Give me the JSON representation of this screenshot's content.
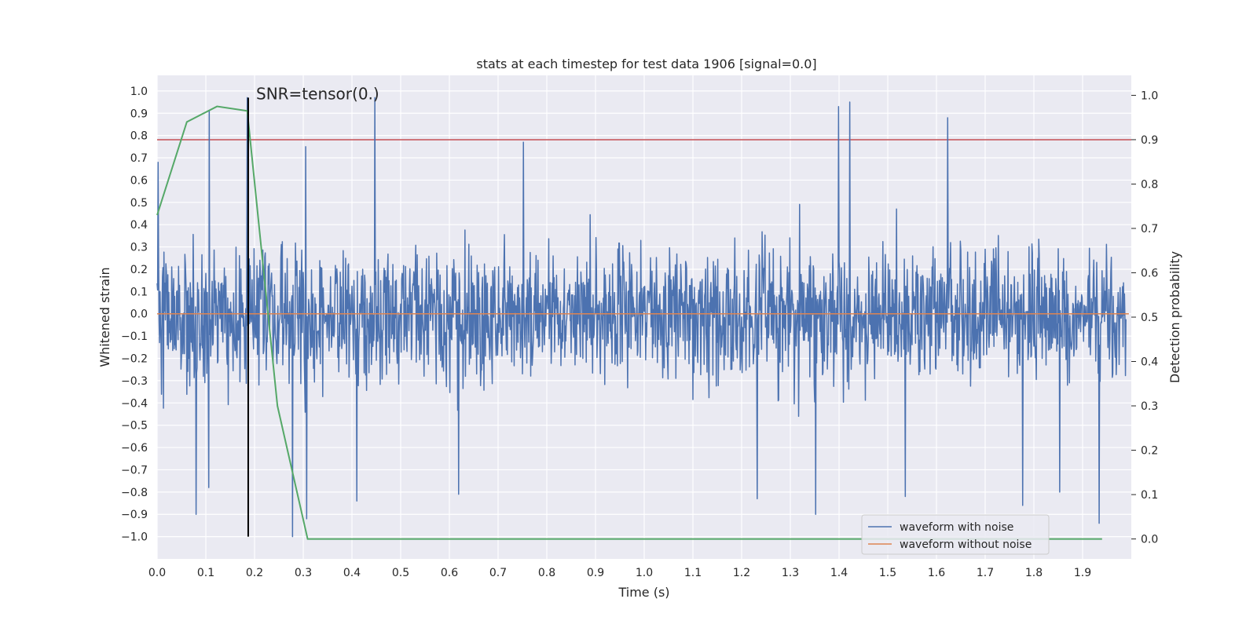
{
  "chart_data": {
    "type": "line",
    "title": "stats at each timestep for test data 1906 [signal=0.0]",
    "xlabel": "Time (s)",
    "ylabel": "Whitened strain",
    "y2label": "Detection probability",
    "xlim": [
      0.0,
      2.0
    ],
    "ylim": [
      -1.1,
      1.07
    ],
    "y2lim": [
      -0.045,
      1.045
    ],
    "x_ticks": [
      "0.0",
      "0.1",
      "0.2",
      "0.3",
      "0.4",
      "0.5",
      "0.6",
      "0.7",
      "0.8",
      "0.9",
      "1.0",
      "1.1",
      "1.2",
      "1.3",
      "1.4",
      "1.5",
      "1.6",
      "1.7",
      "1.8",
      "1.9"
    ],
    "x_tick_values": [
      0.0,
      0.1,
      0.2,
      0.3,
      0.4,
      0.5,
      0.6,
      0.7,
      0.8,
      0.9,
      1.0,
      1.1,
      1.2,
      1.3,
      1.4,
      1.5,
      1.6,
      1.7,
      1.8,
      1.9
    ],
    "y_ticks": [
      "1.0",
      "0.9",
      "0.8",
      "0.7",
      "0.6",
      "0.5",
      "0.4",
      "0.3",
      "0.2",
      "0.1",
      "0.0",
      "−0.1",
      "−0.2",
      "−0.3",
      "−0.4",
      "−0.5",
      "−0.6",
      "−0.7",
      "−0.8",
      "−0.9",
      "−1.0"
    ],
    "y_tick_values": [
      1.0,
      0.9,
      0.8,
      0.7,
      0.6,
      0.5,
      0.4,
      0.3,
      0.2,
      0.1,
      0.0,
      -0.1,
      -0.2,
      -0.3,
      -0.4,
      -0.5,
      -0.6,
      -0.7,
      -0.8,
      -0.9,
      -1.0
    ],
    "y2_ticks": [
      "1.0",
      "0.9",
      "0.8",
      "0.7",
      "0.6",
      "0.5",
      "0.4",
      "0.3",
      "0.2",
      "0.1",
      "0.0"
    ],
    "y2_tick_values": [
      1.0,
      0.9,
      0.8,
      0.7,
      0.6,
      0.5,
      0.4,
      0.3,
      0.2,
      0.1,
      0.0
    ],
    "annotation": {
      "text": "SNR=tensor(0.)",
      "x": 0.2,
      "y": 0.97
    },
    "vline": {
      "x": 0.187,
      "ymin": -1.0,
      "ymax": 0.97,
      "color": "#000000"
    },
    "threshold": {
      "value": 0.9,
      "axis": "right",
      "color": "#c44e52"
    },
    "noise_seed": 1906,
    "noise_samples": 1990,
    "noise_std": 0.26,
    "spikes": [
      {
        "x": 0.002,
        "y": 0.68
      },
      {
        "x": 0.107,
        "y": 0.91
      },
      {
        "x": 0.185,
        "y": 0.97
      },
      {
        "x": 0.447,
        "y": 0.97
      },
      {
        "x": 1.399,
        "y": 0.93
      },
      {
        "x": 1.422,
        "y": 0.95
      },
      {
        "x": 1.623,
        "y": 0.88
      },
      {
        "x": 0.752,
        "y": 0.77
      },
      {
        "x": 0.305,
        "y": 0.75
      },
      {
        "x": 0.08,
        "y": -0.9
      },
      {
        "x": 0.278,
        "y": -1.0
      },
      {
        "x": 0.307,
        "y": -0.92
      },
      {
        "x": 1.352,
        "y": -0.9
      },
      {
        "x": 1.777,
        "y": -0.86
      },
      {
        "x": 1.934,
        "y": -0.94
      },
      {
        "x": 0.41,
        "y": -0.84
      },
      {
        "x": 0.619,
        "y": -0.81
      },
      {
        "x": 0.106,
        "y": -0.78
      },
      {
        "x": 1.232,
        "y": -0.83
      },
      {
        "x": 1.536,
        "y": -0.82
      },
      {
        "x": 1.853,
        "y": -0.8
      }
    ],
    "series": [
      {
        "name": "waveform with noise",
        "color": "#4c72b0",
        "axis": "left"
      },
      {
        "name": "waveform without noise",
        "color": "#dd8452",
        "axis": "left",
        "x": [
          0.0,
          1.995
        ],
        "y": [
          0.0,
          0.0
        ]
      },
      {
        "name": "detection probability",
        "color": "#55a868",
        "axis": "right",
        "x": [
          0.0,
          0.061,
          0.123,
          0.185,
          0.247,
          0.309,
          0.5,
          1.0,
          1.5,
          1.94
        ],
        "y": [
          0.73,
          0.94,
          0.975,
          0.965,
          0.3,
          0.0,
          0.0,
          0.0,
          0.0,
          0.0
        ]
      }
    ],
    "legend": {
      "placement": "lower-right",
      "entries": [
        {
          "label": "waveform with noise",
          "color": "#4c72b0"
        },
        {
          "label": "waveform without noise",
          "color": "#dd8452"
        }
      ]
    }
  }
}
